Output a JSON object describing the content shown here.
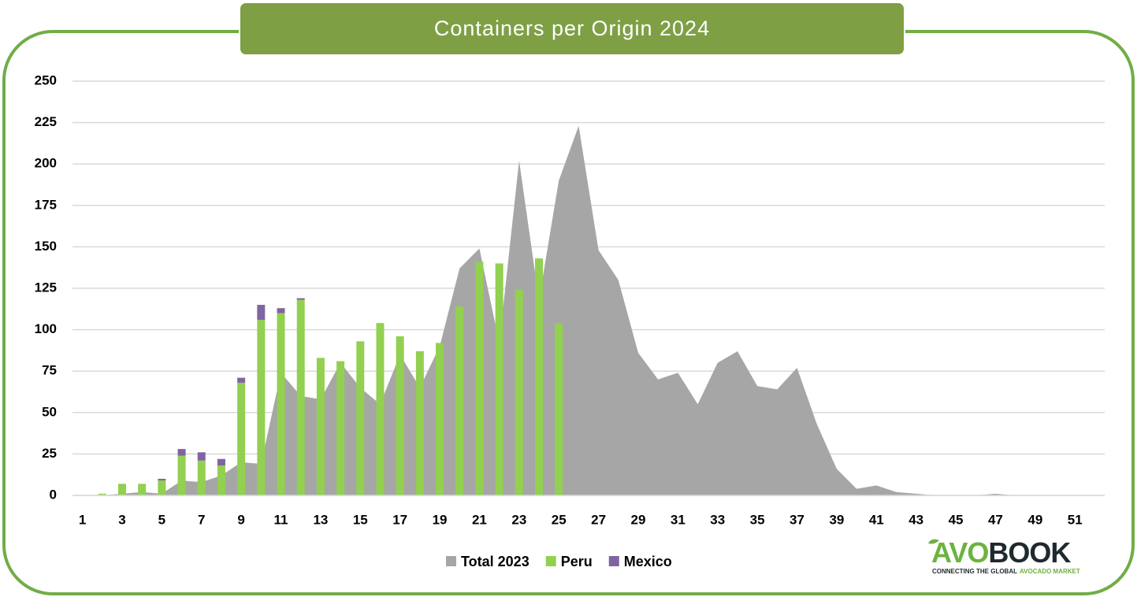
{
  "chart_data": {
    "type": "bar",
    "title": "Containers per Origin 2024",
    "categories": [
      "1",
      null,
      "3",
      null,
      "5",
      null,
      "7",
      null,
      "9",
      null,
      "11",
      null,
      "13",
      null,
      "15",
      null,
      "17",
      null,
      "19",
      null,
      "21",
      null,
      "23",
      null,
      "25",
      null,
      "27",
      null,
      "29",
      null,
      "31",
      null,
      "33",
      null,
      "35",
      null,
      "37",
      null,
      "39",
      null,
      "41",
      null,
      "43",
      null,
      "45",
      null,
      "47",
      null,
      "49",
      null,
      "51",
      null
    ],
    "series": [
      {
        "name": "Total 2023",
        "type": "area",
        "color": "#a6a6a6",
        "values": [
          0,
          0,
          1,
          2,
          1,
          9,
          8,
          12,
          20,
          19,
          74,
          60,
          58,
          80,
          65,
          55,
          85,
          65,
          90,
          137,
          149,
          92,
          202,
          118,
          190,
          223,
          148,
          130,
          86,
          70,
          74,
          55,
          80,
          87,
          66,
          64,
          77,
          43,
          16,
          4,
          6,
          2,
          1,
          0,
          0,
          0,
          1,
          0,
          0,
          0,
          0,
          0
        ]
      },
      {
        "name": "Peru",
        "type": "bar",
        "color": "#92d050",
        "values": [
          0,
          1,
          7,
          7,
          9,
          24,
          21,
          18,
          68,
          106,
          110,
          118,
          83,
          81,
          93,
          104,
          96,
          87,
          92,
          114,
          141,
          140,
          124,
          143,
          104,
          null,
          null,
          null,
          null,
          null,
          null,
          null,
          null,
          null,
          null,
          null,
          null,
          null,
          null,
          null,
          null,
          null,
          null,
          null,
          null,
          null,
          null,
          null,
          null,
          null,
          null,
          null
        ]
      },
      {
        "name": "Mexico",
        "type": "bar",
        "color": "#8064a2",
        "values": [
          0,
          0,
          0,
          0,
          1,
          4,
          5,
          4,
          3,
          9,
          3,
          1,
          0,
          0,
          0,
          0,
          0,
          0,
          0,
          0,
          0,
          0,
          0,
          0,
          0,
          null,
          null,
          null,
          null,
          null,
          null,
          null,
          null,
          null,
          null,
          null,
          null,
          null,
          null,
          null,
          null,
          null,
          null,
          null,
          null,
          null,
          null,
          null,
          null,
          null,
          null,
          null
        ]
      }
    ],
    "ylim": [
      0,
      250
    ],
    "yticks": [
      0,
      25,
      50,
      75,
      100,
      125,
      150,
      175,
      200,
      225,
      250
    ],
    "grid": true,
    "legend": "bottom"
  },
  "logo": {
    "brand_left": "AVO",
    "brand_right": "BOOK",
    "tagline_left": "CONNECTING THE GLOBAL",
    "tagline_right": "AVOCADO MARKET"
  }
}
